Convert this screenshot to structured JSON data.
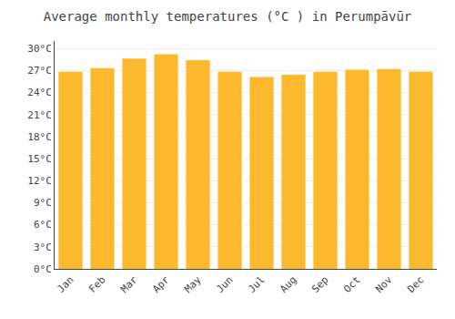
{
  "chart_data": {
    "type": "bar",
    "title": "Average monthly temperatures (°C ) in Perumpāvūr",
    "categories": [
      "Jan",
      "Feb",
      "Mar",
      "Apr",
      "May",
      "Jun",
      "Jul",
      "Aug",
      "Sep",
      "Oct",
      "Nov",
      "Dec"
    ],
    "values": [
      26.8,
      27.3,
      28.6,
      29.2,
      28.4,
      26.8,
      26.1,
      26.4,
      26.8,
      27.1,
      27.2,
      26.8
    ],
    "color": "#FDB92E",
    "ylim": [
      0,
      31
    ],
    "yticks": [
      {
        "value": 0,
        "label": "0°C"
      },
      {
        "value": 3,
        "label": "3°C"
      },
      {
        "value": 6,
        "label": "6°C"
      },
      {
        "value": 9,
        "label": "9°C"
      },
      {
        "value": 12,
        "label": "12°C"
      },
      {
        "value": 15,
        "label": "15°C"
      },
      {
        "value": 18,
        "label": "18°C"
      },
      {
        "value": 21,
        "label": "21°C"
      },
      {
        "value": 24,
        "label": "24°C"
      },
      {
        "value": 27,
        "label": "27°C"
      },
      {
        "value": 30,
        "label": "30°C"
      }
    ],
    "grid": true
  }
}
